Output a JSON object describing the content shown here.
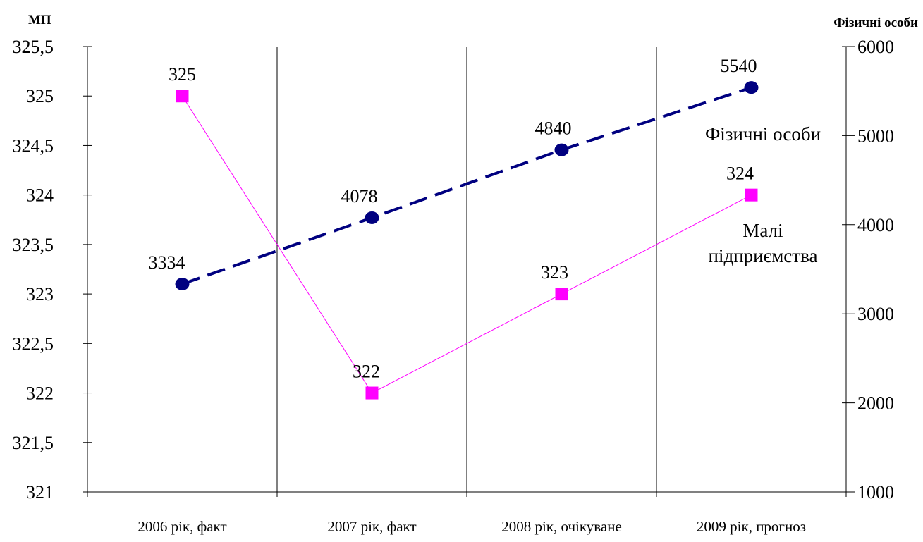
{
  "chart_data": {
    "type": "line",
    "categories": [
      "2006 рік, факт",
      "2007 рік, факт",
      "2008 рік, очікуване",
      "2009 рік, прогноз"
    ],
    "y_left": {
      "title": "МП",
      "range": [
        321,
        325.5
      ],
      "ticks": [
        "325,5",
        "325",
        "324,5",
        "324",
        "323,5",
        "323",
        "322,5",
        "322",
        "321,5",
        "321"
      ]
    },
    "y_right": {
      "title": "Фізичні особи",
      "range": [
        1000,
        6000
      ],
      "ticks": [
        "6000",
        "5000",
        "4000",
        "3000",
        "2000",
        "1000"
      ]
    },
    "series": [
      {
        "name": "Малі підприємства",
        "name_lines": [
          "Малі",
          "підприємства"
        ],
        "axis": "left",
        "values": [
          325,
          322,
          323,
          324
        ],
        "labels": [
          "325",
          "322",
          "323",
          "324"
        ],
        "color": "#ff00ff",
        "marker": "square",
        "line_style": "solid"
      },
      {
        "name": "Фізичні особи",
        "axis": "right",
        "values": [
          3334,
          4078,
          4840,
          5540
        ],
        "labels": [
          "3334",
          "4078",
          "4840",
          "5540"
        ],
        "color": "#000080",
        "marker": "circle",
        "line_style": "dashed"
      }
    ],
    "grid": "vertical category dividers"
  }
}
